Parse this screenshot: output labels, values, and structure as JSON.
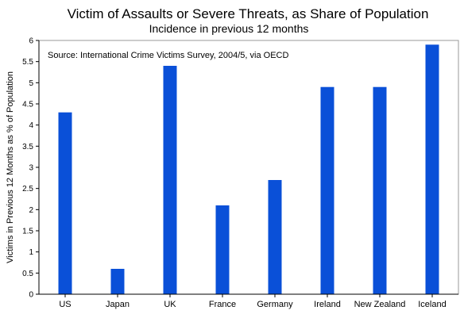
{
  "chart_data": {
    "type": "bar",
    "title": "Victim of Assaults or Severe Threats, as Share of Population",
    "subtitle": "Incidence in previous 12 months",
    "annotation": "Source: International Crime Victims Survey, 2004/5, via OECD",
    "xlabel": "",
    "ylabel": "Victims in Previous 12 Months as % of Population",
    "categories": [
      "US",
      "Japan",
      "UK",
      "France",
      "Germany",
      "Ireland",
      "New Zealand",
      "Iceland"
    ],
    "values": [
      4.3,
      0.6,
      5.4,
      2.1,
      2.7,
      4.9,
      4.9,
      5.9
    ],
    "ylim": [
      0,
      6
    ],
    "yticks": [
      0,
      0.5,
      1,
      1.5,
      2,
      2.5,
      3,
      3.5,
      4,
      4.5,
      5,
      5.5,
      6
    ],
    "ytick_labels": [
      "0",
      "0.5",
      "1",
      "1.5",
      "2",
      "2.5",
      "3",
      "3.5",
      "4",
      "4.5",
      "5",
      "5.5",
      "6"
    ],
    "bar_color": "#0a50d8",
    "grid": false,
    "legend": "none"
  }
}
